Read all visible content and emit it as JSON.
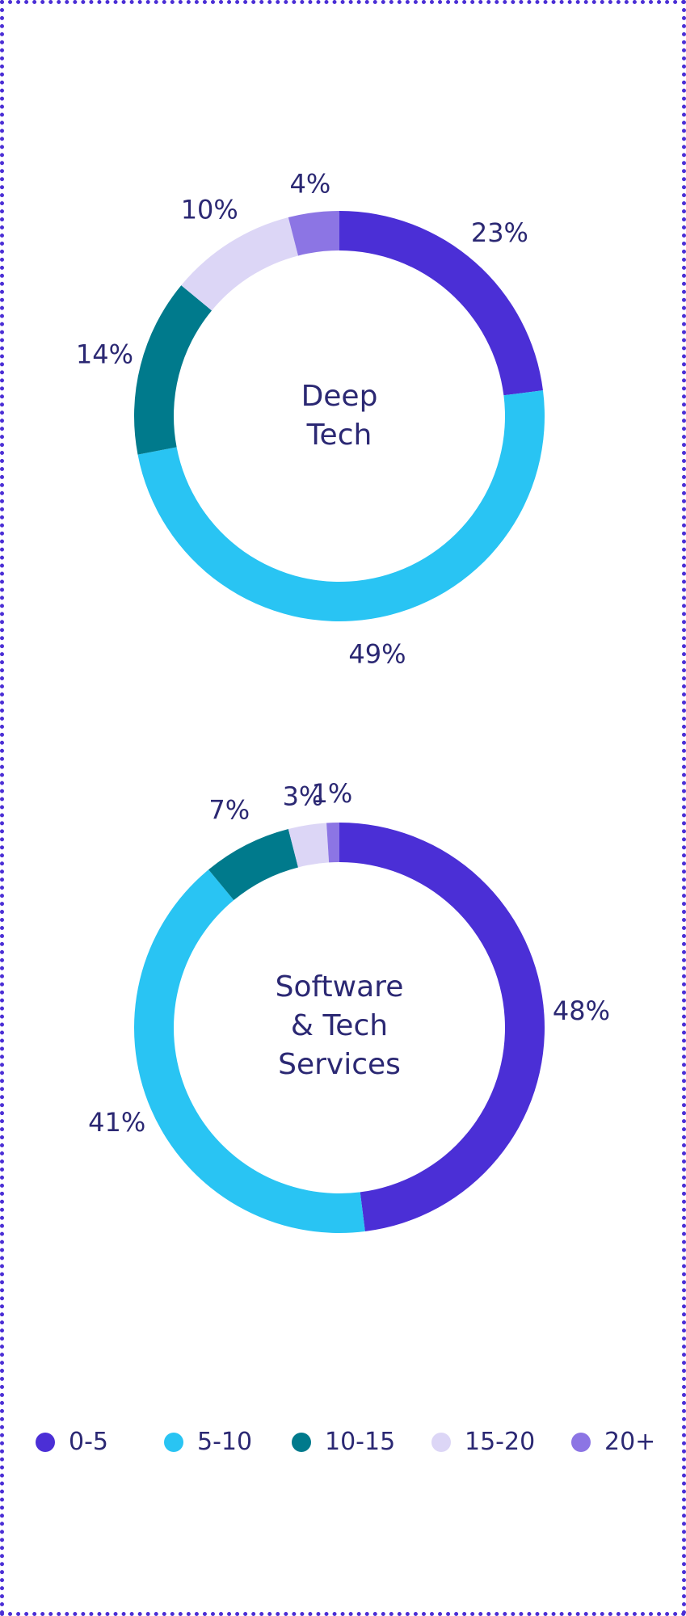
{
  "chart_data": [
    {
      "type": "pie",
      "title": "Deep Tech",
      "title_lines": [
        "Deep",
        "Tech"
      ],
      "categories": [
        "0-5",
        "5-10",
        "10-15",
        "15-20",
        "20+"
      ],
      "values": [
        23,
        49,
        14,
        10,
        4
      ],
      "value_labels": [
        "23%",
        "49%",
        "14%",
        "10%",
        "4%"
      ],
      "unit": "%"
    },
    {
      "type": "pie",
      "title": "Software & Tech Services",
      "title_lines": [
        "Software",
        "& Tech",
        "Services"
      ],
      "categories": [
        "0-5",
        "5-10",
        "10-15",
        "15-20",
        "20+"
      ],
      "values": [
        48,
        41,
        7,
        3,
        1
      ],
      "value_labels": [
        "48%",
        "41%",
        "7%",
        "3%",
        "1%"
      ],
      "unit": "%"
    }
  ],
  "legend": {
    "placement": "bottom",
    "items": [
      {
        "label": "0-5",
        "color": "#4b2fd6"
      },
      {
        "label": "5-10",
        "color": "#29c4f3"
      },
      {
        "label": "10-15",
        "color": "#007a8c"
      },
      {
        "label": "15-20",
        "color": "#dcd6f6"
      },
      {
        "label": "20+",
        "color": "#8c75e4"
      }
    ]
  },
  "colors": {
    "frame": "#4b2fd6",
    "text": "#2b2873"
  }
}
